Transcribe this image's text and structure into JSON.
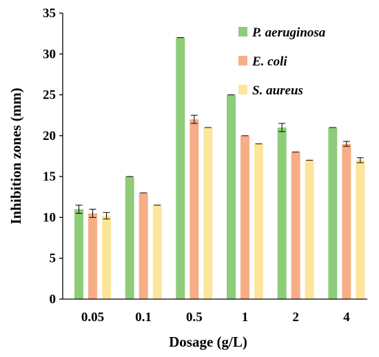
{
  "chart_data": {
    "type": "bar",
    "title": "",
    "xlabel": "Dosage (g/L)",
    "ylabel": "Inhibition zones (mm)",
    "ylim": [
      0,
      35
    ],
    "yticks": [
      "0",
      "5",
      "10",
      "15",
      "20",
      "25",
      "30",
      "35"
    ],
    "categories": [
      "0.05",
      "0.1",
      "0.5",
      "1",
      "2",
      "4"
    ],
    "grid": false,
    "legend_position": "top-right",
    "error_bars": true,
    "series": [
      {
        "name": "P. aeruginosa",
        "color": "#8fcc7a",
        "values": [
          11,
          15,
          32,
          25,
          21,
          21
        ],
        "errors": [
          0.5,
          0,
          0,
          0,
          0.5,
          0
        ]
      },
      {
        "name": "E. coli",
        "color": "#f7ad85",
        "values": [
          10.5,
          13,
          22,
          20,
          18,
          19
        ],
        "errors": [
          0.5,
          0,
          0.5,
          0,
          0,
          0.3
        ]
      },
      {
        "name": "S. aureus",
        "color": "#fde59b",
        "values": [
          10.2,
          11.5,
          21,
          19,
          17,
          17
        ],
        "errors": [
          0.4,
          0,
          0,
          0,
          0,
          0.3
        ]
      }
    ]
  }
}
